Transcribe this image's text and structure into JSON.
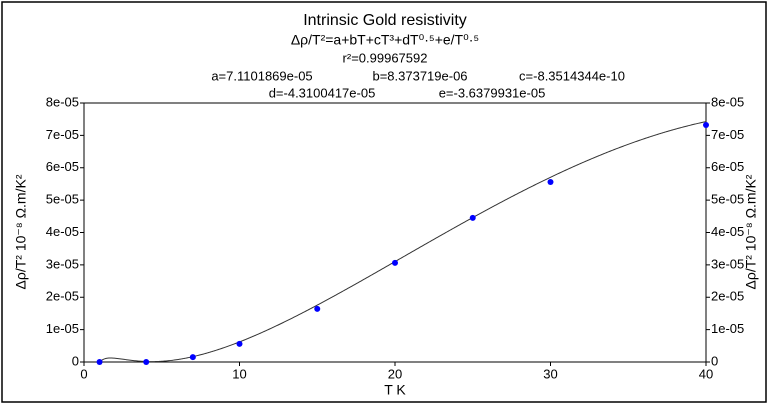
{
  "chart_data": {
    "type": "scatter",
    "title": "Intrinsic Gold resistivity",
    "subtitle": "Δρ/T²=a+bT+cT³+dT⁰·⁵+e/T⁰·⁵",
    "r_squared": "r²=0.99967592",
    "parameters": [
      {
        "value": 7.1101869e-05,
        "label": "a=7.1101869e-05"
      },
      {
        "value": 8.373719e-06,
        "label": "b=8.373719e-06"
      },
      {
        "value": -8.3514344e-10,
        "label": "c=-8.3514344e-10"
      },
      {
        "value": -4.3100417e-05,
        "label": "d=-4.3100417e-05"
      },
      {
        "value": -3.6379931e-05,
        "label": "e=-3.6379931e-05"
      }
    ],
    "x_label": "T  K",
    "y_label": "Δρ/T²   10⁻⁸ Ω.m/K²",
    "y2_label": "Δρ/T²   10⁻⁸ Ω.m/K²",
    "x": [
      1,
      4,
      7,
      10,
      15,
      20,
      25,
      30,
      40
    ],
    "series": [
      {
        "color": "#0000ff",
        "values": [
          0,
          0,
          1.5e-06,
          5.6e-06,
          1.64e-05,
          3.06e-05,
          4.45e-05,
          5.56e-05,
          7.32e-05
        ]
      }
    ],
    "curve_color": "#333333",
    "xlim": [
      0,
      40
    ],
    "xticks": [
      0,
      10,
      20,
      30,
      40
    ],
    "ylim": [
      0,
      8e-05
    ],
    "yticks": [
      0,
      {
        "value": 1e-05,
        "label": "1e-05"
      },
      {
        "value": 2e-05,
        "label": "2e-05"
      },
      {
        "value": 3e-05,
        "label": "3e-05"
      },
      {
        "value": 4e-05,
        "label": "4e-05"
      },
      {
        "value": 5e-05,
        "label": "5e-05"
      },
      {
        "value": 6e-05,
        "label": "6e-05"
      },
      {
        "value": 7e-05,
        "label": "7e-05"
      },
      {
        "value": 8e-05,
        "label": "8e-05"
      }
    ],
    "y2lim": [
      0,
      8e-05
    ],
    "y2ticks": [
      0,
      {
        "value": 1e-05,
        "label": "1e-05"
      },
      {
        "value": 2e-05,
        "label": "2e-05"
      },
      {
        "value": 3e-05,
        "label": "3e-05"
      },
      {
        "value": 4e-05,
        "label": "4e-05"
      },
      {
        "value": 5e-05,
        "label": "5e-05"
      },
      {
        "value": 6e-05,
        "label": "6e-05"
      },
      {
        "value": 7e-05,
        "label": "7e-05"
      },
      {
        "value": 8e-05,
        "label": "8e-05"
      }
    ]
  }
}
